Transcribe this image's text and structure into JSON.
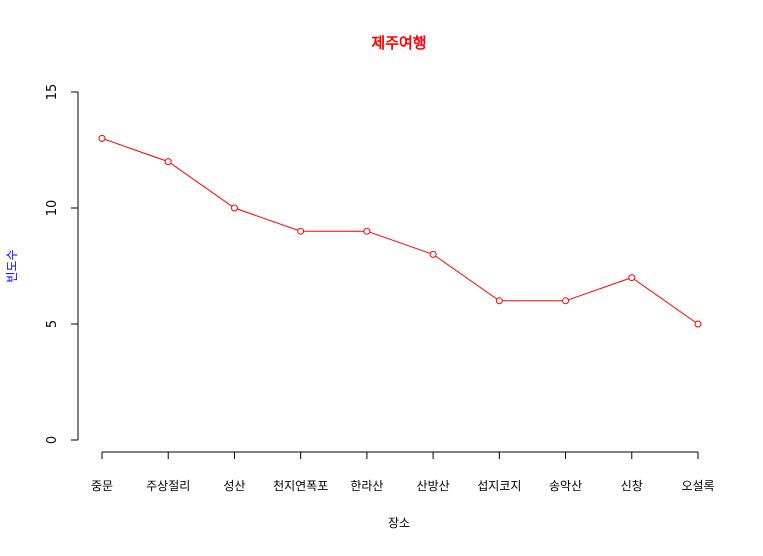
{
  "chart_data": {
    "type": "line",
    "title": "제주여행",
    "xlabel": "장소",
    "ylabel": "빈도수",
    "categories": [
      "중문",
      "주상절리",
      "성산",
      "천지연폭포",
      "한라산",
      "산방산",
      "섭지코지",
      "송악산",
      "신창",
      "오설록"
    ],
    "values": [
      13,
      12,
      10,
      9,
      9,
      8,
      6,
      6,
      7,
      5
    ],
    "ylim": [
      0,
      15
    ],
    "yticks": [
      0,
      5,
      10,
      15
    ],
    "grid": false,
    "colors": {
      "title": "#ff0000",
      "ylabel": "#0000ff",
      "xlabel": "#000000",
      "series": "#ff0000",
      "axis": "#000000"
    }
  }
}
